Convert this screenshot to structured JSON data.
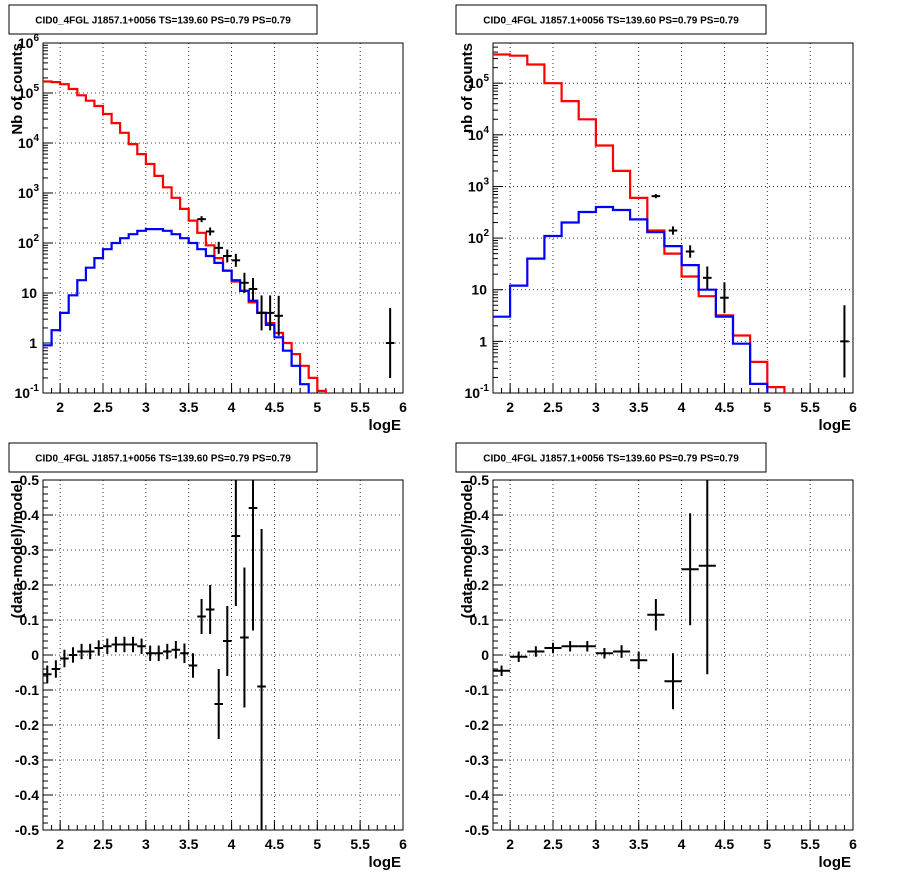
{
  "panels": [
    {
      "title": "CID0_4FGL J1857.1+0056 TS=139.60 PS=0.79 PS=0.79",
      "xlabel": "logE",
      "ylabel": "Nb of counts"
    },
    {
      "title": "CID0_4FGL J1857.1+0056 TS=139.60 PS=0.79 PS=0.79",
      "xlabel": "logE",
      "ylabel": "nb of counts"
    },
    {
      "title": "CID0_4FGL J1857.1+0056 TS=139.60 PS=0.79 PS=0.79",
      "xlabel": "logE",
      "ylabel": "(data-model)/model"
    },
    {
      "title": "CID0_4FGL J1857.1+0056 TS=139.60 PS=0.79 PS=0.79",
      "xlabel": "logE",
      "ylabel": "(data-model)/model"
    }
  ],
  "colors": {
    "total_model": "#ff0000",
    "source_model": "#0000ff",
    "data": "#000000",
    "grid": "#000000"
  },
  "chart_data": [
    {
      "type": "line",
      "title": "CID0_4FGL J1857.1+0056 TS=139.60 PS=0.79 PS=0.79",
      "xlabel": "logE",
      "ylabel": "Nb of counts",
      "xlim": [
        1.8,
        6.0
      ],
      "ylim": [
        0.1,
        1000000
      ],
      "yscale": "log",
      "grid": true,
      "x_ticks": [
        "2",
        "2.5",
        "3",
        "3.5",
        "4",
        "4.5",
        "5",
        "5.5",
        "6"
      ],
      "y_ticks": [
        "10^-1",
        "1",
        "10",
        "10^2",
        "10^3",
        "10^4",
        "10^5",
        "10^6"
      ],
      "series": [
        {
          "role": "total_model",
          "style": "step",
          "bin_edges": [
            1.8,
            1.9,
            2.0,
            2.1,
            2.2,
            2.3,
            2.4,
            2.5,
            2.6,
            2.7,
            2.8,
            2.9,
            3.0,
            3.1,
            3.2,
            3.3,
            3.4,
            3.5,
            3.6,
            3.7,
            3.8,
            3.9,
            4.0,
            4.1,
            4.2,
            4.3,
            4.4,
            4.5,
            4.6,
            4.7,
            4.8,
            4.9,
            5.0,
            5.1,
            5.2,
            5.3,
            5.4,
            5.5,
            5.6,
            5.7,
            5.8,
            5.9,
            6.0
          ],
          "values": [
            170000,
            165000,
            150000,
            120000,
            90000,
            70000,
            55000,
            38000,
            25000,
            16000,
            9500,
            6000,
            3800,
            2200,
            1300,
            800,
            480,
            280,
            160,
            90,
            50,
            28,
            17,
            11,
            6.5,
            4,
            2.5,
            1.6,
            1.0,
            0.6,
            0.35,
            0.2,
            0.11,
            0.08,
            0.08,
            0.08,
            0.08,
            0.08,
            0.08,
            0.08,
            0.08,
            0.08
          ]
        },
        {
          "role": "source_model",
          "style": "step",
          "bin_edges": [
            1.8,
            1.9,
            2.0,
            2.1,
            2.2,
            2.3,
            2.4,
            2.5,
            2.6,
            2.7,
            2.8,
            2.9,
            3.0,
            3.1,
            3.2,
            3.3,
            3.4,
            3.5,
            3.6,
            3.7,
            3.8,
            3.9,
            4.0,
            4.1,
            4.2,
            4.3,
            4.4,
            4.5,
            4.6,
            4.7,
            4.8,
            4.9,
            5.0,
            5.1,
            5.2,
            5.3,
            5.4,
            5.5,
            5.6,
            5.7,
            5.8,
            5.9,
            6.0
          ],
          "values": [
            0.9,
            1.8,
            4,
            9,
            18,
            32,
            50,
            75,
            100,
            125,
            150,
            175,
            190,
            190,
            175,
            150,
            125,
            100,
            75,
            55,
            40,
            28,
            18,
            11,
            7,
            4,
            2.3,
            1.3,
            0.7,
            0.35,
            0.15,
            0.08,
            0.08,
            0.08,
            0.08,
            0.08,
            0.08,
            0.08,
            0.08,
            0.08,
            0.08,
            0.08
          ]
        },
        {
          "role": "data",
          "style": "errorbar",
          "x": [
            3.65,
            3.75,
            3.85,
            3.95,
            4.05,
            4.15,
            4.25,
            4.35,
            4.45,
            4.55,
            5.85
          ],
          "y": [
            300,
            170,
            80,
            55,
            45,
            16,
            12,
            4,
            4,
            3.5,
            1
          ],
          "yerr": [
            0.06,
            0.08,
            0.12,
            0.13,
            0.13,
            0.2,
            0.22,
            0.35,
            0.35,
            0.4,
            0.7
          ]
        }
      ]
    },
    {
      "type": "line",
      "title": "CID0_4FGL J1857.1+0056 TS=139.60 PS=0.79 PS=0.79",
      "xlabel": "logE",
      "ylabel": "nb of counts",
      "xlim": [
        1.8,
        6.0
      ],
      "ylim": [
        0.1,
        600000
      ],
      "yscale": "log",
      "grid": true,
      "x_ticks": [
        "2",
        "2.5",
        "3",
        "3.5",
        "4",
        "4.5",
        "5",
        "5.5",
        "6"
      ],
      "y_ticks": [
        "10^-1",
        "1",
        "10",
        "10^2",
        "10^3",
        "10^4",
        "10^5"
      ],
      "series": [
        {
          "role": "total_model",
          "style": "step",
          "bin_edges": [
            1.8,
            2.0,
            2.2,
            2.4,
            2.6,
            2.8,
            3.0,
            3.2,
            3.4,
            3.6,
            3.8,
            4.0,
            4.2,
            4.4,
            4.6,
            4.8,
            5.0,
            5.2,
            5.4,
            5.6,
            5.8,
            6.0
          ],
          "values": [
            360000,
            340000,
            230000,
            100000,
            45000,
            20000,
            6200,
            2000,
            600,
            140,
            50,
            18,
            7.5,
            3.2,
            1.3,
            0.4,
            0.13,
            0.08,
            0.08,
            0.08,
            0.08
          ]
        },
        {
          "role": "source_model",
          "style": "step",
          "bin_edges": [
            1.8,
            2.0,
            2.2,
            2.4,
            2.6,
            2.8,
            3.0,
            3.2,
            3.4,
            3.6,
            3.8,
            4.0,
            4.2,
            4.4,
            4.6,
            4.8,
            5.0,
            5.2,
            5.4,
            5.6,
            5.8,
            6.0
          ],
          "values": [
            3,
            12,
            40,
            110,
            200,
            320,
            400,
            350,
            230,
            130,
            70,
            30,
            10,
            3,
            0.9,
            0.15,
            0.08,
            0.08,
            0.08,
            0.08,
            0.08
          ]
        },
        {
          "role": "data",
          "style": "errorbar",
          "x": [
            3.7,
            3.9,
            4.1,
            4.3,
            4.5,
            5.9
          ],
          "y": [
            650,
            140,
            55,
            17,
            7,
            1
          ],
          "yerr": [
            0.04,
            0.08,
            0.12,
            0.22,
            0.3,
            0.7
          ]
        }
      ]
    },
    {
      "type": "scatter",
      "title": "CID0_4FGL J1857.1+0056 TS=139.60 PS=0.79 PS=0.79",
      "xlabel": "logE",
      "ylabel": "(data-model)/model",
      "xlim": [
        1.8,
        6.0
      ],
      "ylim": [
        -0.5,
        0.5
      ],
      "grid": true,
      "x_ticks": [
        "2",
        "2.5",
        "3",
        "3.5",
        "4",
        "4.5",
        "5",
        "5.5",
        "6"
      ],
      "y_ticks": [
        "-0.5",
        "-0.4",
        "-0.3",
        "-0.2",
        "-0.1",
        "0",
        "0.1",
        "0.2",
        "0.3",
        "0.4",
        "0.5"
      ],
      "series": [
        {
          "role": "data",
          "style": "errorbar",
          "x": [
            1.85,
            1.95,
            2.05,
            2.15,
            2.25,
            2.35,
            2.45,
            2.55,
            2.65,
            2.75,
            2.85,
            2.95,
            3.05,
            3.15,
            3.25,
            3.35,
            3.45,
            3.55,
            3.65,
            3.75,
            3.85,
            3.95,
            4.05,
            4.15,
            4.25,
            4.35
          ],
          "y": [
            -0.055,
            -0.04,
            -0.01,
            0.0,
            0.01,
            0.01,
            0.02,
            0.025,
            0.03,
            0.03,
            0.03,
            0.025,
            0.005,
            0.005,
            0.01,
            0.015,
            0.005,
            -0.03,
            0.11,
            0.13,
            -0.14,
            0.04,
            0.34,
            0.05,
            0.42,
            -0.09
          ],
          "yerr": [
            0.025,
            0.025,
            0.025,
            0.022,
            0.022,
            0.022,
            0.022,
            0.022,
            0.022,
            0.022,
            0.022,
            0.022,
            0.022,
            0.022,
            0.022,
            0.025,
            0.028,
            0.035,
            0.05,
            0.07,
            0.1,
            0.1,
            0.2,
            0.2,
            0.35,
            0.45
          ]
        }
      ]
    },
    {
      "type": "scatter",
      "title": "CID0_4FGL J1857.1+0056 TS=139.60 PS=0.79 PS=0.79",
      "xlabel": "logE",
      "ylabel": "(data-model)/model",
      "xlim": [
        1.8,
        6.0
      ],
      "ylim": [
        -0.5,
        0.5
      ],
      "grid": true,
      "x_ticks": [
        "2",
        "2.5",
        "3",
        "3.5",
        "4",
        "4.5",
        "5",
        "5.5",
        "6"
      ],
      "y_ticks": [
        "-0.5",
        "-0.4",
        "-0.3",
        "-0.2",
        "-0.1",
        "0",
        "0.1",
        "0.2",
        "0.3",
        "0.4",
        "0.5"
      ],
      "series": [
        {
          "role": "data",
          "style": "errorbar",
          "x": [
            1.9,
            2.1,
            2.3,
            2.5,
            2.7,
            2.9,
            3.1,
            3.3,
            3.5,
            3.7,
            3.9,
            4.1,
            4.3
          ],
          "y": [
            -0.045,
            -0.005,
            0.01,
            0.02,
            0.025,
            0.025,
            0.005,
            0.01,
            -0.015,
            0.115,
            -0.075,
            0.245,
            0.255
          ],
          "yerr": [
            0.015,
            0.015,
            0.015,
            0.015,
            0.015,
            0.015,
            0.015,
            0.018,
            0.025,
            0.045,
            0.08,
            0.16,
            0.31
          ]
        }
      ]
    }
  ]
}
